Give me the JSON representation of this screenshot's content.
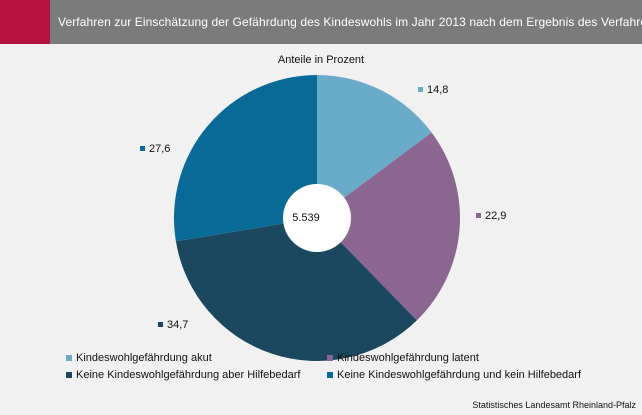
{
  "header": {
    "title": "Verfahren zur Einschätzung der Gefährdung des Kindeswohls im Jahr 2013 nach dem Ergebnis des Verfahrens",
    "accent_color": "#b5123f",
    "bar_color": "#7b7b7b"
  },
  "chart_data": {
    "type": "pie",
    "subtitle": "Anteile in Prozent",
    "center_label": "5.539",
    "series": [
      {
        "name": "Kindeswohlgefährdung akut",
        "value": 14.8,
        "label": "14,8",
        "color": "#6aabc9"
      },
      {
        "name": "Kindeswohlgefährdung latent",
        "value": 22.9,
        "label": "22,9",
        "color": "#8b6690"
      },
      {
        "name": "Keine Kindeswohlgefährdung aber Hilfebedarf",
        "value": 34.7,
        "label": "34,7",
        "color": "#1b475f"
      },
      {
        "name": "Keine Kindeswohlgefährdung und kein Hilfebedarf",
        "value": 27.6,
        "label": "27,6",
        "color": "#0a6a97"
      }
    ],
    "legend_position": "bottom"
  },
  "footer": {
    "source": "Statistisches Landesamt Rheinland-Pfalz"
  }
}
